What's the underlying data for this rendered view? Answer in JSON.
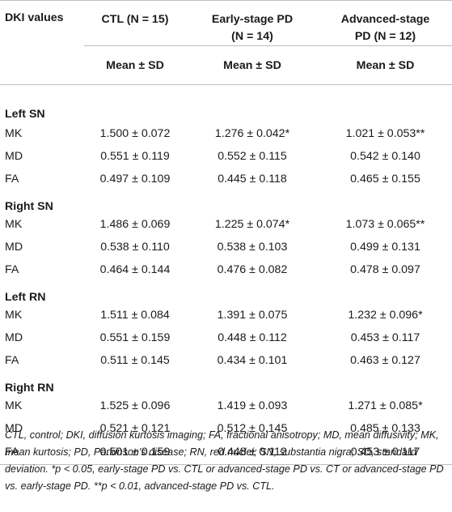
{
  "header": {
    "col0": "DKI values",
    "col1_line1": "CTL (N = 15)",
    "col2_line1": "Early-stage PD",
    "col2_line2": "(N = 14)",
    "col3_line1": "Advanced-stage",
    "col3_line2": "PD (N = 12)",
    "sub": "Mean ± SD"
  },
  "sections": [
    {
      "title": "Left SN",
      "rows": [
        {
          "metric": "MK",
          "ctl": "1.500 ± 0.072",
          "early": "1.276 ± 0.042*",
          "adv": "1.021 ± 0.053**"
        },
        {
          "metric": "MD",
          "ctl": "0.551 ± 0.119",
          "early": "0.552 ± 0.115",
          "adv": "0.542 ± 0.140"
        },
        {
          "metric": "FA",
          "ctl": "0.497 ± 0.109",
          "early": "0.445 ± 0.118",
          "adv": "0.465 ± 0.155"
        }
      ]
    },
    {
      "title": "Right SN",
      "rows": [
        {
          "metric": "MK",
          "ctl": "1.486 ± 0.069",
          "early": "1.225 ± 0.074*",
          "adv": "1.073 ± 0.065**"
        },
        {
          "metric": "MD",
          "ctl": "0.538 ± 0.110",
          "early": "0.538 ± 0.103",
          "adv": "0.499 ± 0.131"
        },
        {
          "metric": "FA",
          "ctl": "0.464 ± 0.144",
          "early": "0.476 ± 0.082",
          "adv": "0.478 ± 0.097"
        }
      ]
    },
    {
      "title": "Left RN",
      "rows": [
        {
          "metric": "MK",
          "ctl": "1.511 ± 0.084",
          "early": "1.391 ± 0.075",
          "adv": "1.232 ± 0.096*"
        },
        {
          "metric": "MD",
          "ctl": "0.551 ± 0.159",
          "early": "0.448 ± 0.112",
          "adv": "0.453 ± 0.117"
        },
        {
          "metric": "FA",
          "ctl": "0.511 ± 0.145",
          "early": "0.434 ± 0.101",
          "adv": "0.463 ± 0.127"
        }
      ]
    },
    {
      "title": "Right RN",
      "rows": [
        {
          "metric": "MK",
          "ctl": "1.525 ± 0.096",
          "early": "1.419 ± 0.093",
          "adv": "1.271 ± 0.085*"
        },
        {
          "metric": "MD",
          "ctl": "0.521 ± 0.121",
          "early": "0.512 ± 0.145",
          "adv": "0.485 ± 0.133"
        },
        {
          "metric": "FA",
          "ctl": "0.501 ± 0.159",
          "early": "0.448 ± 0.112",
          "adv": "0.453 ± 0.117"
        }
      ]
    }
  ],
  "footnote": "CTL, control; DKI, diffusion kurtosis imaging; FA, fractional anisotropy; MD, mean diffusivity; MK, mean kurtosis; PD, Parkinson's disease; RN, red nuclei; SN, substantia nigra; SD, standard deviation. *p < 0.05, early-stage PD vs. CTL or advanced-stage PD vs. CT or advanced-stage PD vs. early-stage PD. **p < 0.01, advanced-stage PD vs. CTL."
}
